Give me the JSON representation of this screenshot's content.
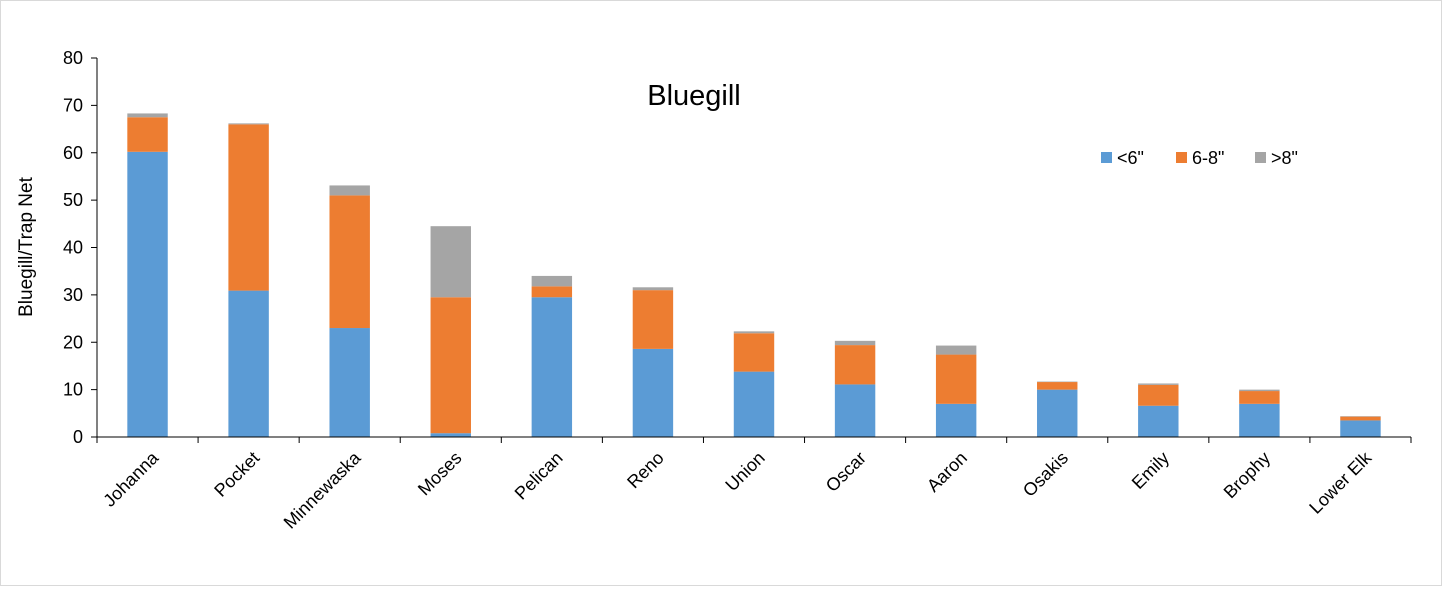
{
  "chart_data": {
    "type": "bar",
    "stacked": true,
    "title": "Bluegill",
    "xlabel": "",
    "ylabel": "Bluegill/Trap Net",
    "ylim": [
      0,
      80
    ],
    "yticks": [
      0,
      10,
      20,
      30,
      40,
      50,
      60,
      70,
      80
    ],
    "grid": false,
    "legend_position": "top-right",
    "categories": [
      "Johanna",
      "Pocket",
      "Minnewaska",
      "Moses",
      "Pelican",
      "Reno",
      "Union",
      "Oscar",
      "Aaron",
      "Osakis",
      "Emily",
      "Brophy",
      "Lower Elk"
    ],
    "series": [
      {
        "name": "<6\"",
        "color": "#5b9bd5",
        "values": [
          60.2,
          30.9,
          23.0,
          0.8,
          29.5,
          18.6,
          13.8,
          11.1,
          7.0,
          10.0,
          6.6,
          7.0,
          3.5
        ]
      },
      {
        "name": "6-8\"",
        "color": "#ed7d31",
        "values": [
          7.3,
          35.1,
          28.0,
          28.7,
          2.3,
          12.4,
          8.1,
          8.3,
          10.4,
          1.6,
          4.4,
          2.7,
          0.8
        ]
      },
      {
        "name": ">8\"",
        "color": "#a5a5a5",
        "values": [
          0.8,
          0.2,
          2.1,
          15.0,
          2.2,
          0.6,
          0.4,
          0.9,
          1.9,
          0.1,
          0.3,
          0.3,
          0.1
        ]
      }
    ]
  }
}
